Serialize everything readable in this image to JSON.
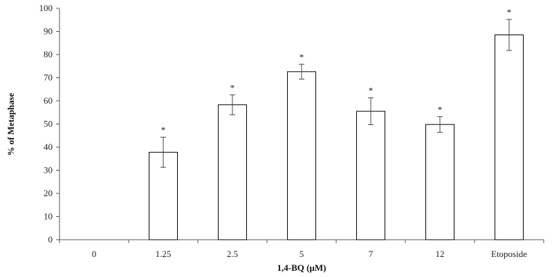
{
  "chart_data": {
    "type": "bar",
    "categories": [
      "0",
      "1.25",
      "2.5",
      "5",
      "7",
      "12",
      "Etoposide"
    ],
    "values": [
      0,
      37.8,
      58.3,
      72.6,
      55.5,
      49.8,
      88.5
    ],
    "error": [
      0,
      6.5,
      4.3,
      3.2,
      5.8,
      3.4,
      6.7
    ],
    "significance": [
      "",
      "*",
      "*",
      "*",
      "*",
      "*",
      "*"
    ],
    "xlabel": "1,4-BQ (μM)",
    "ylabel": "% of Metaphase",
    "ylim": [
      0,
      100
    ],
    "yticks": [
      "0",
      "10",
      "20",
      "30",
      "40",
      "50",
      "60",
      "70",
      "80",
      "90",
      "100"
    ],
    "grid": false,
    "legend": "none",
    "colors": {
      "bar_fill": "#ffffff",
      "bar_stroke": "#000000",
      "axis": "#555555"
    }
  }
}
